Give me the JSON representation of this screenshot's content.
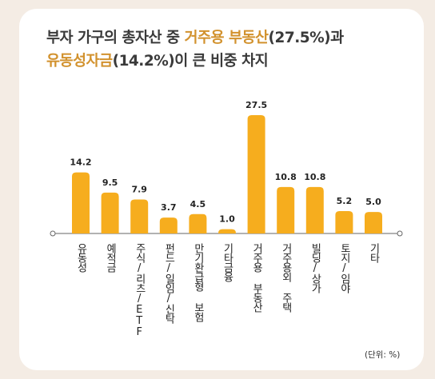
{
  "title": {
    "line1": {
      "pre": "부자 가구의 총자산 중 ",
      "hl": "거주용 부동산",
      "post": "(27.5%)과"
    },
    "line2": {
      "hl": "유동성자금",
      "post": "(14.2%)이 큰 비중 차지"
    }
  },
  "unit_note": "(단위: %)",
  "colors": {
    "bar": "#f6ad1e",
    "highlight_text": "#d2922e",
    "background": "#f4ece4",
    "axis": "#666666"
  },
  "chart_data": {
    "type": "bar",
    "categories": [
      "유동성",
      "예적금",
      "주식/리츠/ETF",
      "펀드/일임/신탁",
      "만기환급형 보험",
      "기타금융",
      "거주용 부동산",
      "거주용외 주택",
      "빌딩/상가",
      "토지/임야",
      "기타"
    ],
    "values": [
      14.2,
      9.5,
      7.9,
      3.7,
      4.5,
      1.0,
      27.5,
      10.8,
      10.8,
      5.2,
      5.0
    ],
    "value_labels": [
      "14.2",
      "9.5",
      "7.9",
      "3.7",
      "4.5",
      "1.0",
      "27.5",
      "10.8",
      "10.8",
      "5.2",
      "5.0"
    ],
    "ylim": [
      0,
      27.5
    ],
    "grid": false,
    "unit": "%"
  }
}
